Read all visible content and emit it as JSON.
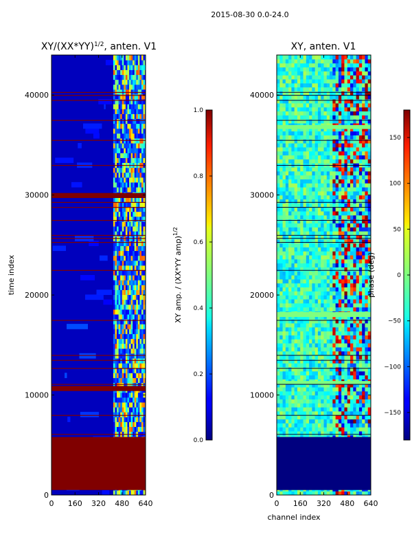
{
  "chart_data": [
    {
      "type": "heatmap",
      "suptitle": "2015-08-30 0.0-24.0",
      "title": "XY/(XX*YY)^{1/2}, anten. V1",
      "title_main": "XY/(XX*YY)",
      "title_sup": "1/2",
      "title_tail": ", anten. V1",
      "xlabel": "",
      "ylabel": "time index",
      "xlim": [
        0,
        640
      ],
      "ylim": [
        0,
        44000
      ],
      "xticks": [
        0,
        160,
        320,
        480,
        640
      ],
      "yticks": [
        0,
        10000,
        20000,
        30000,
        40000
      ],
      "colorbar": {
        "label_main": "XY amp. / (XX*YY amp)",
        "label_sup": "1/2",
        "range": [
          0.0,
          1.0
        ],
        "ticks": [
          "0.0",
          "0.2",
          "0.4",
          "0.6",
          "0.8",
          "1.0"
        ],
        "tick_values": [
          0.0,
          0.2,
          0.4,
          0.6,
          0.8,
          1.0
        ],
        "colormap": "jet"
      },
      "flagged_rows_high": [
        [
          500,
          5800
        ],
        [
          10400,
          10900
        ],
        [
          29700,
          30200
        ]
      ],
      "thin_flag_lines": [
        6100,
        8000,
        11100,
        12700,
        13500,
        14000,
        17500,
        22500,
        25300,
        25700,
        26000,
        27500,
        28800,
        29300,
        33000,
        35500,
        37500,
        39500,
        40000,
        40300
      ],
      "active_channels": [
        420,
        640
      ]
    },
    {
      "type": "heatmap",
      "title": "XY, anten. V1",
      "xlabel": "channel index",
      "ylabel": "",
      "xlim": [
        0,
        640
      ],
      "ylim": [
        0,
        44000
      ],
      "xticks": [
        0,
        160,
        320,
        480,
        640
      ],
      "yticks": [
        0,
        10000,
        20000,
        30000,
        40000
      ],
      "colorbar": {
        "label": "phase (deg)",
        "range": [
          -180,
          180
        ],
        "ticks": [
          "−150",
          "−100",
          "−50",
          "0",
          "50",
          "100",
          "150"
        ],
        "tick_values": [
          -150,
          -100,
          -50,
          0,
          50,
          100,
          150
        ],
        "colormap": "jet"
      },
      "flagged_rows_low": [
        [
          500,
          5800
        ]
      ],
      "cyan_bands": [
        [
          17800,
          18300
        ],
        [
          11100,
          11400
        ],
        [
          36600,
          37000
        ]
      ]
    }
  ],
  "colors": {
    "jet_dark_red": "#800000",
    "jet_dark_blue": "#00007f"
  }
}
